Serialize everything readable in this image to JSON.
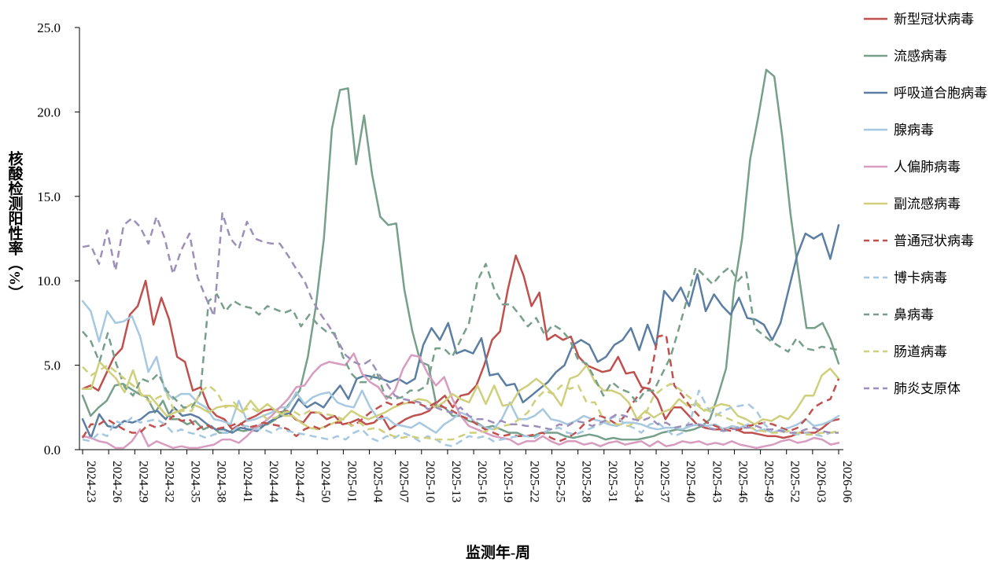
{
  "chart_data": {
    "type": "line",
    "title": "",
    "xlabel": "监测年-周",
    "ylabel": "核酸检测阳性率（%）",
    "ylim": [
      0,
      25
    ],
    "yticks": [
      "0.0",
      "5.0",
      "10.0",
      "15.0",
      "20.0",
      "25.0"
    ],
    "legend_position": "right",
    "grid": false,
    "x_tick_labels": [
      "2024-23",
      "2024-26",
      "2024-29",
      "2024-32",
      "2024-35",
      "2024-38",
      "2024-41",
      "2024-44",
      "2024-47",
      "2024-50",
      "2025-01",
      "2025-04",
      "2025-07",
      "2025-10",
      "2025-13",
      "2025-16",
      "2025-19",
      "2025-22",
      "2025-25",
      "2025-28",
      "2025-31",
      "2025-34",
      "2025-37",
      "2025-40",
      "2025-43",
      "2025-46",
      "2025-49",
      "2025-52",
      "2026-03",
      "2026-06"
    ],
    "series": [
      {
        "name": "新型冠状病毒",
        "color": "#c0504d",
        "dash": false,
        "values": [
          3.6,
          3.8,
          3.5,
          4.5,
          5.5,
          6,
          8,
          8.5,
          10,
          7.4,
          9,
          7.7,
          5.5,
          5.2,
          3.5,
          3.7,
          2.5,
          2,
          1.8,
          1.2,
          1.5,
          1.8,
          2,
          2.3,
          2.4,
          2.2,
          2.3,
          1.8,
          1.6,
          2.2,
          2.2,
          1.8,
          2,
          1.5,
          1.6,
          1.8,
          1.5,
          1.6,
          2,
          1.2,
          1.5,
          1.8,
          2,
          2.1,
          2.3,
          2.8,
          3.2,
          2.5,
          3.2,
          3.3,
          3.8,
          5,
          6.5,
          7,
          9.5,
          11.5,
          10.3,
          8.5,
          9.3,
          6.5,
          6.8,
          6.5,
          6.7,
          5.5,
          5,
          4.8,
          4.6,
          4.7,
          5.5,
          4.5,
          4.6,
          3.7,
          3.6,
          3,
          1.8,
          2.5,
          2.5,
          2,
          1.5,
          1.3,
          1.2,
          1.2,
          1.3,
          1.2,
          1,
          1,
          0.9,
          0.8,
          0.8,
          0.7,
          0.8,
          1,
          1,
          1,
          1.3,
          1.7,
          1.8
        ]
      },
      {
        "name": "流感病毒",
        "color": "#76a08a",
        "dash": false,
        "values": [
          3.2,
          2,
          2.5,
          2.9,
          3.8,
          3.9,
          3.6,
          3.3,
          3.1,
          2.2,
          2.9,
          1.8,
          1.8,
          1.5,
          1.7,
          1.2,
          1.4,
          1,
          1,
          1.2,
          1.1,
          1.2,
          1.4,
          1.5,
          1.8,
          2.3,
          2.9,
          3.5,
          5.5,
          8.5,
          12.5,
          19,
          21.3,
          21.4,
          16.9,
          19.8,
          16.3,
          13.8,
          13.3,
          13.4,
          9.5,
          7,
          5.2,
          5,
          2.6,
          2.5,
          2,
          2,
          1.7,
          1.6,
          1.3,
          1.4,
          1.2,
          1,
          1,
          0.8,
          0.8,
          1,
          1,
          1,
          0.8,
          0.7,
          0.8,
          0.9,
          0.8,
          0.6,
          0.7,
          0.6,
          0.6,
          0.6,
          0.7,
          0.8,
          1,
          1.1,
          1.2,
          1.1,
          1.2,
          1.4,
          1.8,
          3.2,
          4.8,
          9.5,
          12.5,
          17.2,
          19.7,
          22.5,
          22.1,
          18.5,
          14,
          10.5,
          7.2,
          7.2,
          7.5,
          6.5,
          5.1
        ]
      },
      {
        "name": "呼吸道合胞病毒",
        "color": "#5b7ea3",
        "dash": false,
        "values": [
          1.8,
          0.7,
          2.1,
          1.4,
          1.3,
          1.7,
          1.6,
          1.8,
          2.2,
          2.3,
          1.8,
          2.5,
          2,
          2.1,
          1.9,
          1.5,
          1.2,
          1.2,
          1,
          1.3,
          1.2,
          1.1,
          1.5,
          1.8,
          2,
          2.2,
          3,
          2.5,
          2.8,
          2.5,
          3.2,
          3.8,
          3,
          4.2,
          4.4,
          4.3,
          4.2,
          4,
          4.2,
          3.9,
          4.2,
          6.2,
          7.2,
          6.5,
          7.5,
          5.7,
          5.9,
          5.7,
          6.6,
          4.4,
          4.5,
          3.8,
          3.9,
          2.8,
          3.2,
          3.6,
          4,
          4.6,
          5,
          6.2,
          6.5,
          6.2,
          5.2,
          5.5,
          6.2,
          6.5,
          7.2,
          5.9,
          7.4,
          6.1,
          9.4,
          8.8,
          9.6,
          8.5,
          10.4,
          8.2,
          9.2,
          8.5,
          8,
          9,
          7.8,
          7.7,
          7.4,
          6.5,
          7.5,
          9.5,
          11.5,
          12.8,
          12.5,
          12.8,
          11.3,
          13.3
        ]
      },
      {
        "name": "腺病毒",
        "color": "#a6c8e0",
        "dash": false,
        "values": [
          8.8,
          8.2,
          6.4,
          8.2,
          7.5,
          7.6,
          7.9,
          6.7,
          4.6,
          5.5,
          3.5,
          3,
          3.3,
          3.3,
          2.8,
          2.5,
          1.8,
          1.7,
          1.5,
          2.9,
          1.7,
          1.8,
          2,
          2.2,
          2.5,
          2.5,
          3.4,
          2.7,
          3.1,
          3.3,
          3.4,
          2.8,
          2.6,
          2.5,
          3.5,
          2.5,
          1.8,
          1.9,
          1.5,
          1.4,
          1.3,
          1.6,
          1.3,
          1,
          1.5,
          1.8,
          2.2,
          2,
          1.5,
          1.3,
          1.2,
          1.8,
          2.8,
          1.8,
          1.8,
          2,
          2.4,
          1.8,
          1.7,
          1.5,
          1.7,
          2,
          1.8,
          1.7,
          1.5,
          1.4,
          1.6,
          1.6,
          1.5,
          1.3,
          1.2,
          1.3,
          1.3,
          1.2,
          1.4,
          1.5,
          1.4,
          1.5,
          1.2,
          1.4,
          1.3,
          1.5,
          1.1,
          1.2,
          1,
          1.2,
          1.3,
          1.5,
          1.8,
          1.4,
          1.5,
          1.7,
          2
        ]
      },
      {
        "name": "人偏肺病毒",
        "color": "#d89cc0",
        "dash": false,
        "values": [
          0.8,
          0.7,
          0.5,
          0.4,
          0.1,
          0.1,
          0.5,
          1.2,
          0.2,
          0.5,
          0.3,
          0.1,
          0.2,
          0.1,
          0.1,
          0.2,
          0.3,
          0.6,
          0.6,
          0.4,
          0.8,
          1.3,
          1.6,
          2,
          2.5,
          3,
          3.7,
          3.8,
          4.5,
          5,
          5.2,
          5.1,
          5,
          5.7,
          4.5,
          4,
          3.7,
          3,
          3.5,
          4.8,
          5.6,
          5.5,
          4.5,
          3.8,
          4.3,
          3,
          2,
          1.4,
          1.2,
          1,
          0.8,
          0.7,
          0.6,
          0.3,
          0.5,
          0.5,
          0.8,
          0.5,
          0.3,
          0.5,
          0.5,
          0.3,
          0.4,
          0.2,
          0.4,
          0.5,
          0.3,
          0.4,
          0.5,
          0.2,
          0.5,
          0.2,
          0.3,
          0.5,
          0.4,
          0.5,
          0.3,
          0.4,
          0.3,
          0.5,
          0.3,
          0.2,
          0.1,
          0.2,
          0.3,
          0.5,
          0.6,
          0.4,
          0.5,
          0.7,
          0.6,
          0.3,
          0.4
        ]
      },
      {
        "name": "副流感病毒",
        "color": "#cfcf7c",
        "dash": false,
        "values": [
          3.6,
          3.6,
          5.2,
          4.7,
          4.2,
          3.4,
          4.7,
          3.2,
          3.2,
          2.6,
          2,
          2.2,
          2.4,
          2.7,
          2.5,
          2.2,
          2.5,
          2.6,
          2.6,
          2.2,
          2.9,
          2.3,
          2.7,
          2.3,
          2,
          2,
          1.6,
          1.3,
          1.2,
          1.4,
          1.6,
          1.8,
          2.3,
          2,
          1.8,
          2,
          2.2,
          2.5,
          2.7,
          2.8,
          3,
          2.9,
          2.5,
          2.8,
          3.3,
          3,
          2.8,
          3.8,
          2.7,
          3.8,
          2.6,
          2.7,
          3.5,
          3.8,
          4.2,
          3.8,
          3.3,
          2.6,
          4.2,
          4.4,
          5,
          4,
          3.5,
          3.5,
          3.3,
          2.8,
          1.8,
          2.3,
          1.9,
          2.2,
          2.4,
          3,
          2.6,
          2.7,
          2.3,
          2.5,
          2.7,
          2.6,
          2,
          1.8,
          1.5,
          1.8,
          1.7,
          2,
          1.8,
          2.4,
          3.2,
          3.2,
          4.4,
          4.8,
          4.2
        ]
      },
      {
        "name": "普通冠状病毒",
        "color": "#c0504d",
        "dash": true,
        "values": [
          0.7,
          1.5,
          1.5,
          1.8,
          1.5,
          1.2,
          1,
          1,
          1.5,
          1.3,
          1.5,
          2,
          1.7,
          1.8,
          1.2,
          1.5,
          1.2,
          1.3,
          1.4,
          1.6,
          1.3,
          1.4,
          1.6,
          1.5,
          1.4,
          1.2,
          0.8,
          1.2,
          1.4,
          1.2,
          1.5,
          1.6,
          1.6,
          1.4,
          1.8,
          2.2,
          2.5,
          2.8,
          2.6,
          2.8,
          2.8,
          2.7,
          2.5,
          2.8,
          2.5,
          2.3,
          2,
          1.8,
          1.5,
          1.2,
          1,
          0.8,
          0.9,
          0.8,
          0.8,
          0.9,
          1,
          0.7,
          0.5,
          0.7,
          1,
          1.5,
          1.8,
          2,
          1.8,
          1.5,
          2,
          2.8,
          3.5,
          4,
          6.7,
          6.8,
          3.8,
          3.2,
          2.5,
          2,
          1.6,
          1.4,
          1.2,
          1.1,
          1.2,
          1.4,
          1.5,
          1.6,
          1.5,
          1.3,
          1.1,
          1.3,
          1.8,
          2.5,
          2.8,
          3,
          4.2
        ]
      },
      {
        "name": "博卡病毒",
        "color": "#a6c8e0",
        "dash": true,
        "values": [
          0.6,
          0.5,
          1,
          0.8,
          1.7,
          1.5,
          1.9,
          1.6,
          1.7,
          1.8,
          1.5,
          1,
          1.2,
          1,
          0.9,
          0.7,
          0.9,
          1,
          1,
          1.4,
          1.4,
          1.2,
          1.2,
          1,
          1.3,
          1.1,
          1,
          0.9,
          0.8,
          0.7,
          0.6,
          0.8,
          0.6,
          1,
          1.2,
          0.7,
          0.5,
          0.8,
          0.7,
          1,
          0.8,
          0.5,
          0.8,
          0.6,
          0.3,
          0.2,
          0.5,
          0.8,
          0.7,
          0.8,
          0.5,
          0.6,
          0.7,
          0.8,
          0.8,
          0.7,
          1,
          1.2,
          1.3,
          1,
          0.9,
          1.1,
          1.3,
          1.5,
          1.8,
          2,
          1.5,
          1.3,
          1,
          1.5,
          1.6,
          1.2,
          0.8,
          1,
          1.8,
          3.5,
          2.5,
          2,
          2.3,
          2.5,
          2.6,
          2.7,
          2.3,
          1.5,
          1,
          1.2,
          1,
          0.9,
          1,
          0.9,
          0.8,
          1,
          1
        ]
      },
      {
        "name": "鼻病毒",
        "color": "#76a08a",
        "dash": true,
        "values": [
          7,
          6.4,
          5.2,
          6.9,
          5.1,
          3.7,
          3.2,
          4.2,
          4,
          4.5,
          3.5,
          3,
          2.5,
          2.5,
          3.3,
          8.8,
          9.2,
          8.2,
          8.8,
          8.5,
          8.4,
          8,
          8.5,
          8.3,
          8.1,
          8.3,
          7.3,
          8,
          7.4,
          7,
          6.9,
          5.5,
          4.5,
          4,
          4,
          4.6,
          3.2,
          3,
          3.1,
          3.5,
          3.5,
          3.8,
          6,
          6,
          5.5,
          6.5,
          7.5,
          10,
          11,
          9.5,
          8.6,
          8.6,
          8,
          7.3,
          7.8,
          6.8,
          7.4,
          7.1,
          6.5,
          5.3,
          5.1,
          4.2,
          3.2,
          4,
          3.6,
          3.4,
          2.8,
          3.5,
          3.5,
          4.5,
          5.5,
          7.2,
          9,
          10.8,
          10.3,
          9.8,
          10.4,
          10.8,
          10,
          10.5,
          7.2,
          6.8,
          6.4,
          6.1,
          5.8,
          6.6,
          6,
          5.9,
          6.1,
          6,
          5.9
        ]
      },
      {
        "name": "肠道病毒",
        "color": "#cfcf7c",
        "dash": true,
        "values": [
          4.9,
          4.4,
          4.7,
          5,
          4.6,
          4.2,
          3.8,
          3.3,
          2.8,
          3.1,
          3.3,
          2.2,
          2.3,
          2.3,
          3.4,
          3.8,
          3.4,
          2.5,
          2.8,
          2.3,
          2.5,
          2.2,
          1.8,
          1.9,
          2.2,
          2.3,
          2,
          2.3,
          2.2,
          2.1,
          2,
          1.8,
          1.4,
          1.6,
          1.2,
          1.3,
          1,
          0.8,
          0.7,
          0.8,
          0.7,
          0.7,
          0.6,
          0.6,
          0.6,
          0.8,
          1,
          1,
          1.1,
          1.2,
          1.4,
          1.5,
          1.8,
          2.2,
          3,
          3.5,
          3.3,
          3.8,
          3.6,
          3.8,
          2.8,
          2.8,
          1.8,
          1.5,
          1.5,
          1.4,
          1.7,
          2.1,
          3.2,
          3.6,
          3.9,
          3.6,
          3.2,
          2.8,
          2.4,
          2.2,
          2,
          1.8,
          1.6,
          1.4,
          1.2,
          1.1,
          1,
          1,
          1.1,
          1,
          0.9,
          0.9,
          1,
          1,
          1.1
        ]
      },
      {
        "name": "肺炎支原体",
        "color": "#9e8fba",
        "dash": true,
        "values": [
          12,
          12.1,
          11,
          13,
          10.6,
          13.3,
          13.7,
          13.2,
          12.2,
          13.8,
          12.5,
          10.4,
          11.8,
          12.8,
          10.2,
          9,
          7.9,
          14,
          12.5,
          11.9,
          13.5,
          12.5,
          12.3,
          12.2,
          12.2,
          11.5,
          10.7,
          10,
          8.8,
          8,
          7.3,
          6.5,
          5.6,
          5.2,
          5,
          5.3,
          4.5,
          3.9,
          3.2,
          3,
          2.9,
          2.8,
          2.4,
          2.5,
          2.3,
          2.2,
          2.5,
          2,
          1.8,
          1.8,
          1.6,
          1.7,
          1.5,
          1.5,
          1.4,
          1.4,
          1.3,
          1.2,
          1.5,
          1.4,
          1.7,
          1.6,
          1.4,
          1.6,
          1.8,
          2.1,
          2,
          1.8,
          1.7,
          1.9,
          1.5,
          1.6,
          1.3,
          1.4,
          1.5,
          1.5,
          1.3,
          1.2,
          1.1,
          1.2,
          1.3,
          1.3,
          1.4,
          1.2,
          1.2,
          1.1,
          1,
          1,
          1.2,
          1.3,
          1.1,
          1,
          1
        ]
      }
    ]
  }
}
